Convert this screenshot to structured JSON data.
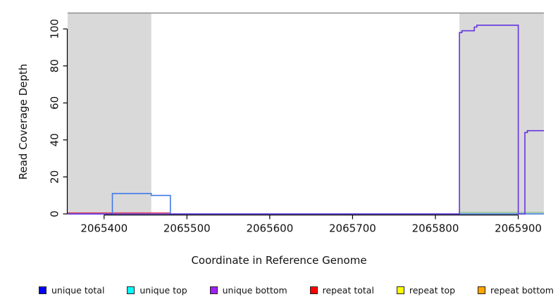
{
  "chart_data": {
    "type": "line",
    "title": "",
    "xlabel": "Coordinate in Reference Genome",
    "ylabel": "Read Coverage Depth",
    "xlim": [
      2065356,
      2065931
    ],
    "ylim": [
      0,
      108.4
    ],
    "x_ticks": [
      2065400,
      2065500,
      2065600,
      2065700,
      2065800,
      2065900
    ],
    "y_ticks": [
      0,
      20,
      40,
      60,
      80,
      100
    ],
    "grid": false,
    "legend_position": "bottom",
    "colors": {
      "shaded_region": "#d9d9d9",
      "region_top_line": "#8f8f8f",
      "axis": "#000000",
      "unique_total_line": "#4079e8",
      "unique_bottom_line": "#6633e0",
      "repeat_total_line": "#e03a4e",
      "top_strand_overlap_line": "#86c586"
    },
    "shaded_regions": [
      {
        "x0": 2065356,
        "x1": 2065457
      },
      {
        "x0": 2065829,
        "x1": 2065931
      }
    ],
    "baseline_overlays": [
      {
        "name": "repeat-total-baseline",
        "color_key": "repeat_total_line",
        "x0": 2065356,
        "x1": 2065480,
        "value": 0.55
      },
      {
        "name": "top-strand-overlap-baseline",
        "color_key": "top_strand_overlap_line",
        "x0": 2065829,
        "x1": 2065931,
        "value": 0.8
      }
    ],
    "series": [
      {
        "name": "unique total",
        "color_key": "unique_total_line",
        "points": [
          [
            2065356,
            0
          ],
          [
            2065410,
            0
          ],
          [
            2065410,
            11
          ],
          [
            2065457,
            11
          ],
          [
            2065457,
            10
          ],
          [
            2065480,
            10
          ],
          [
            2065480,
            0
          ],
          [
            2065931,
            0
          ]
        ]
      },
      {
        "name": "unique bottom",
        "color_key": "unique_bottom_line",
        "points": [
          [
            2065356,
            0
          ],
          [
            2065829,
            0
          ],
          [
            2065829,
            98
          ],
          [
            2065832,
            98
          ],
          [
            2065832,
            99
          ],
          [
            2065847,
            99
          ],
          [
            2065847,
            101
          ],
          [
            2065850,
            101
          ],
          [
            2065850,
            102
          ],
          [
            2065900,
            102
          ],
          [
            2065900,
            0
          ],
          [
            2065908,
            0
          ],
          [
            2065908,
            44
          ],
          [
            2065911,
            44
          ],
          [
            2065911,
            45
          ],
          [
            2065931,
            45
          ]
        ]
      }
    ],
    "legend": [
      {
        "label": "unique total",
        "color": "#0000ff"
      },
      {
        "label": "unique top",
        "color": "#00ffff"
      },
      {
        "label": "unique bottom",
        "color": "#a020f0"
      },
      {
        "label": "repeat total",
        "color": "#ff0000"
      },
      {
        "label": "repeat top",
        "color": "#ffff00"
      },
      {
        "label": "repeat bottom",
        "color": "#ffa500"
      }
    ]
  }
}
